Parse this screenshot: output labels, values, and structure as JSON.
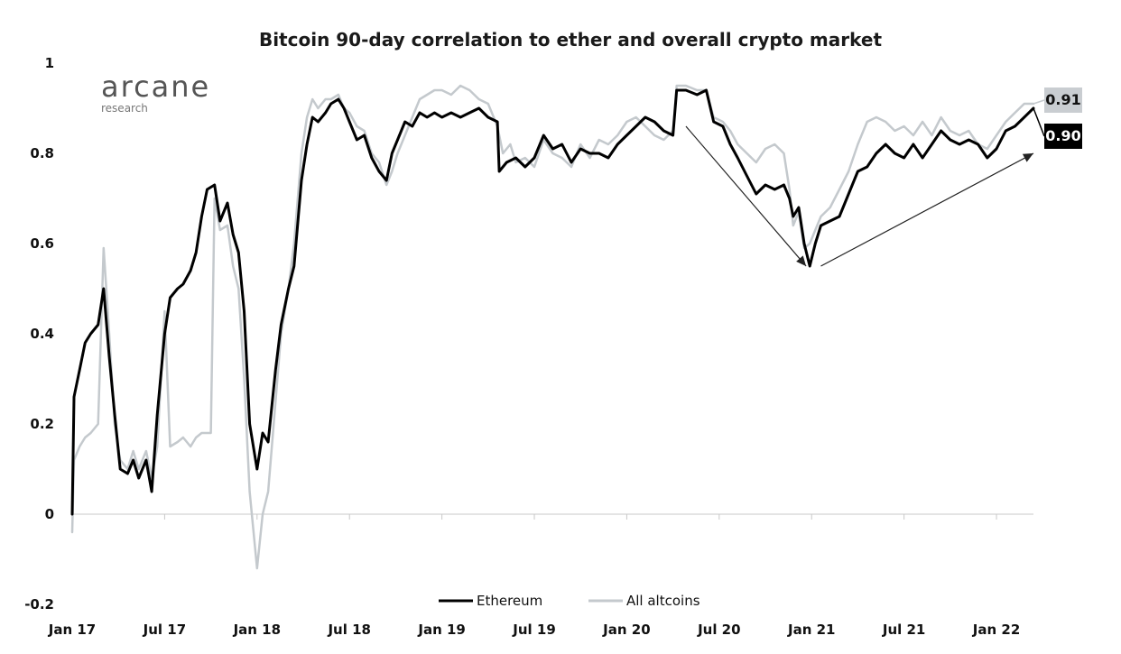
{
  "logo": {
    "name": "arcane",
    "sub": "research"
  },
  "chart_data": {
    "type": "line",
    "title": "Bitcoin 90-day correlation to ether and overall crypto market",
    "ylim": [
      -0.2,
      1
    ],
    "y_ticks": [
      "1",
      "0.8",
      "0.6",
      "0.4",
      "0.2",
      "0",
      "-0.2"
    ],
    "y_tick_values": [
      1,
      0.8,
      0.6,
      0.4,
      0.2,
      0,
      -0.2
    ],
    "x_ticks": [
      "Jan 17",
      "Jul 17",
      "Jan 18",
      "Jul 18",
      "Jan 19",
      "Jul 19",
      "Jan 20",
      "Jul 20",
      "Jan 21",
      "Jul 21",
      "Jan 22"
    ],
    "x_tick_values": [
      2017.0,
      2017.5,
      2018.0,
      2018.5,
      2019.0,
      2019.5,
      2020.0,
      2020.5,
      2021.0,
      2021.5,
      2022.0
    ],
    "xlim": [
      2017.0,
      2022.2
    ],
    "grid": false,
    "legend_position": "bottom-center",
    "series": [
      {
        "name": "Ethereum",
        "color": "#000000",
        "end_label": "0.90",
        "points": [
          [
            2017.0,
            0.0
          ],
          [
            2017.01,
            0.26
          ],
          [
            2017.04,
            0.32
          ],
          [
            2017.07,
            0.38
          ],
          [
            2017.1,
            0.4
          ],
          [
            2017.14,
            0.42
          ],
          [
            2017.17,
            0.5
          ],
          [
            2017.2,
            0.35
          ],
          [
            2017.23,
            0.22
          ],
          [
            2017.26,
            0.1
          ],
          [
            2017.3,
            0.09
          ],
          [
            2017.33,
            0.12
          ],
          [
            2017.36,
            0.08
          ],
          [
            2017.4,
            0.12
          ],
          [
            2017.43,
            0.05
          ],
          [
            2017.46,
            0.22
          ],
          [
            2017.5,
            0.4
          ],
          [
            2017.53,
            0.48
          ],
          [
            2017.57,
            0.5
          ],
          [
            2017.6,
            0.51
          ],
          [
            2017.64,
            0.54
          ],
          [
            2017.67,
            0.58
          ],
          [
            2017.7,
            0.66
          ],
          [
            2017.73,
            0.72
          ],
          [
            2017.77,
            0.73
          ],
          [
            2017.8,
            0.65
          ],
          [
            2017.84,
            0.69
          ],
          [
            2017.87,
            0.62
          ],
          [
            2017.9,
            0.58
          ],
          [
            2017.93,
            0.45
          ],
          [
            2017.96,
            0.2
          ],
          [
            2018.0,
            0.1
          ],
          [
            2018.03,
            0.18
          ],
          [
            2018.06,
            0.16
          ],
          [
            2018.1,
            0.32
          ],
          [
            2018.13,
            0.42
          ],
          [
            2018.17,
            0.5
          ],
          [
            2018.2,
            0.55
          ],
          [
            2018.24,
            0.74
          ],
          [
            2018.27,
            0.82
          ],
          [
            2018.3,
            0.88
          ],
          [
            2018.33,
            0.87
          ],
          [
            2018.37,
            0.89
          ],
          [
            2018.4,
            0.91
          ],
          [
            2018.44,
            0.92
          ],
          [
            2018.47,
            0.9
          ],
          [
            2018.5,
            0.87
          ],
          [
            2018.54,
            0.83
          ],
          [
            2018.58,
            0.84
          ],
          [
            2018.62,
            0.79
          ],
          [
            2018.66,
            0.76
          ],
          [
            2018.7,
            0.74
          ],
          [
            2018.73,
            0.8
          ],
          [
            2018.76,
            0.83
          ],
          [
            2018.8,
            0.87
          ],
          [
            2018.84,
            0.86
          ],
          [
            2018.88,
            0.89
          ],
          [
            2018.92,
            0.88
          ],
          [
            2018.96,
            0.89
          ],
          [
            2019.0,
            0.88
          ],
          [
            2019.05,
            0.89
          ],
          [
            2019.1,
            0.88
          ],
          [
            2019.15,
            0.89
          ],
          [
            2019.2,
            0.9
          ],
          [
            2019.25,
            0.88
          ],
          [
            2019.3,
            0.87
          ],
          [
            2019.31,
            0.76
          ],
          [
            2019.35,
            0.78
          ],
          [
            2019.4,
            0.79
          ],
          [
            2019.45,
            0.77
          ],
          [
            2019.5,
            0.79
          ],
          [
            2019.55,
            0.84
          ],
          [
            2019.6,
            0.81
          ],
          [
            2019.65,
            0.82
          ],
          [
            2019.7,
            0.78
          ],
          [
            2019.75,
            0.81
          ],
          [
            2019.8,
            0.8
          ],
          [
            2019.85,
            0.8
          ],
          [
            2019.9,
            0.79
          ],
          [
            2019.95,
            0.82
          ],
          [
            2020.0,
            0.84
          ],
          [
            2020.05,
            0.86
          ],
          [
            2020.1,
            0.88
          ],
          [
            2020.15,
            0.87
          ],
          [
            2020.2,
            0.85
          ],
          [
            2020.25,
            0.84
          ],
          [
            2020.27,
            0.94
          ],
          [
            2020.32,
            0.94
          ],
          [
            2020.38,
            0.93
          ],
          [
            2020.43,
            0.94
          ],
          [
            2020.47,
            0.87
          ],
          [
            2020.52,
            0.86
          ],
          [
            2020.56,
            0.82
          ],
          [
            2020.6,
            0.79
          ],
          [
            2020.65,
            0.75
          ],
          [
            2020.7,
            0.71
          ],
          [
            2020.75,
            0.73
          ],
          [
            2020.8,
            0.72
          ],
          [
            2020.85,
            0.73
          ],
          [
            2020.88,
            0.7
          ],
          [
            2020.9,
            0.66
          ],
          [
            2020.93,
            0.68
          ],
          [
            2020.96,
            0.6
          ],
          [
            2020.99,
            0.55
          ],
          [
            2021.02,
            0.6
          ],
          [
            2021.05,
            0.64
          ],
          [
            2021.1,
            0.65
          ],
          [
            2021.15,
            0.66
          ],
          [
            2021.2,
            0.71
          ],
          [
            2021.25,
            0.76
          ],
          [
            2021.3,
            0.77
          ],
          [
            2021.35,
            0.8
          ],
          [
            2021.4,
            0.82
          ],
          [
            2021.45,
            0.8
          ],
          [
            2021.5,
            0.79
          ],
          [
            2021.55,
            0.82
          ],
          [
            2021.6,
            0.79
          ],
          [
            2021.65,
            0.82
          ],
          [
            2021.7,
            0.85
          ],
          [
            2021.75,
            0.83
          ],
          [
            2021.8,
            0.82
          ],
          [
            2021.85,
            0.83
          ],
          [
            2021.9,
            0.82
          ],
          [
            2021.95,
            0.79
          ],
          [
            2022.0,
            0.81
          ],
          [
            2022.05,
            0.85
          ],
          [
            2022.1,
            0.86
          ],
          [
            2022.15,
            0.88
          ],
          [
            2022.2,
            0.9
          ]
        ]
      },
      {
        "name": "All altcoins",
        "color": "#c4c9cd",
        "end_label": "0.91",
        "points": [
          [
            2017.0,
            -0.04
          ],
          [
            2017.01,
            0.12
          ],
          [
            2017.04,
            0.15
          ],
          [
            2017.07,
            0.17
          ],
          [
            2017.1,
            0.18
          ],
          [
            2017.14,
            0.2
          ],
          [
            2017.17,
            0.59
          ],
          [
            2017.2,
            0.4
          ],
          [
            2017.23,
            0.2
          ],
          [
            2017.26,
            0.12
          ],
          [
            2017.3,
            0.1
          ],
          [
            2017.33,
            0.14
          ],
          [
            2017.36,
            0.1
          ],
          [
            2017.4,
            0.14
          ],
          [
            2017.43,
            0.08
          ],
          [
            2017.46,
            0.15
          ],
          [
            2017.5,
            0.45
          ],
          [
            2017.53,
            0.15
          ],
          [
            2017.57,
            0.16
          ],
          [
            2017.6,
            0.17
          ],
          [
            2017.64,
            0.15
          ],
          [
            2017.67,
            0.17
          ],
          [
            2017.7,
            0.18
          ],
          [
            2017.73,
            0.18
          ],
          [
            2017.75,
            0.18
          ],
          [
            2017.77,
            0.7
          ],
          [
            2017.8,
            0.63
          ],
          [
            2017.84,
            0.64
          ],
          [
            2017.87,
            0.55
          ],
          [
            2017.9,
            0.5
          ],
          [
            2017.93,
            0.3
          ],
          [
            2017.96,
            0.05
          ],
          [
            2018.0,
            -0.12
          ],
          [
            2018.03,
            0.0
          ],
          [
            2018.06,
            0.05
          ],
          [
            2018.1,
            0.25
          ],
          [
            2018.13,
            0.4
          ],
          [
            2018.17,
            0.5
          ],
          [
            2018.2,
            0.6
          ],
          [
            2018.24,
            0.8
          ],
          [
            2018.27,
            0.88
          ],
          [
            2018.3,
            0.92
          ],
          [
            2018.33,
            0.9
          ],
          [
            2018.37,
            0.92
          ],
          [
            2018.4,
            0.92
          ],
          [
            2018.44,
            0.93
          ],
          [
            2018.47,
            0.9
          ],
          [
            2018.5,
            0.89
          ],
          [
            2018.54,
            0.86
          ],
          [
            2018.58,
            0.85
          ],
          [
            2018.62,
            0.8
          ],
          [
            2018.66,
            0.78
          ],
          [
            2018.7,
            0.73
          ],
          [
            2018.73,
            0.76
          ],
          [
            2018.76,
            0.8
          ],
          [
            2018.8,
            0.84
          ],
          [
            2018.84,
            0.88
          ],
          [
            2018.88,
            0.92
          ],
          [
            2018.92,
            0.93
          ],
          [
            2018.96,
            0.94
          ],
          [
            2019.0,
            0.94
          ],
          [
            2019.05,
            0.93
          ],
          [
            2019.1,
            0.95
          ],
          [
            2019.15,
            0.94
          ],
          [
            2019.2,
            0.92
          ],
          [
            2019.25,
            0.91
          ],
          [
            2019.3,
            0.86
          ],
          [
            2019.33,
            0.8
          ],
          [
            2019.37,
            0.82
          ],
          [
            2019.4,
            0.78
          ],
          [
            2019.45,
            0.79
          ],
          [
            2019.5,
            0.77
          ],
          [
            2019.55,
            0.83
          ],
          [
            2019.6,
            0.8
          ],
          [
            2019.65,
            0.79
          ],
          [
            2019.7,
            0.77
          ],
          [
            2019.75,
            0.82
          ],
          [
            2019.8,
            0.79
          ],
          [
            2019.85,
            0.83
          ],
          [
            2019.9,
            0.82
          ],
          [
            2019.95,
            0.84
          ],
          [
            2020.0,
            0.87
          ],
          [
            2020.05,
            0.88
          ],
          [
            2020.1,
            0.86
          ],
          [
            2020.15,
            0.84
          ],
          [
            2020.2,
            0.83
          ],
          [
            2020.25,
            0.85
          ],
          [
            2020.27,
            0.95
          ],
          [
            2020.32,
            0.95
          ],
          [
            2020.38,
            0.94
          ],
          [
            2020.43,
            0.94
          ],
          [
            2020.47,
            0.88
          ],
          [
            2020.52,
            0.87
          ],
          [
            2020.56,
            0.85
          ],
          [
            2020.6,
            0.82
          ],
          [
            2020.65,
            0.8
          ],
          [
            2020.7,
            0.78
          ],
          [
            2020.75,
            0.81
          ],
          [
            2020.8,
            0.82
          ],
          [
            2020.85,
            0.8
          ],
          [
            2020.88,
            0.72
          ],
          [
            2020.9,
            0.64
          ],
          [
            2020.93,
            0.67
          ],
          [
            2020.96,
            0.59
          ],
          [
            2020.99,
            0.6
          ],
          [
            2021.02,
            0.63
          ],
          [
            2021.05,
            0.66
          ],
          [
            2021.1,
            0.68
          ],
          [
            2021.15,
            0.72
          ],
          [
            2021.2,
            0.76
          ],
          [
            2021.25,
            0.82
          ],
          [
            2021.3,
            0.87
          ],
          [
            2021.35,
            0.88
          ],
          [
            2021.4,
            0.87
          ],
          [
            2021.45,
            0.85
          ],
          [
            2021.5,
            0.86
          ],
          [
            2021.55,
            0.84
          ],
          [
            2021.6,
            0.87
          ],
          [
            2021.65,
            0.84
          ],
          [
            2021.7,
            0.88
          ],
          [
            2021.75,
            0.85
          ],
          [
            2021.8,
            0.84
          ],
          [
            2021.85,
            0.85
          ],
          [
            2021.9,
            0.82
          ],
          [
            2021.95,
            0.81
          ],
          [
            2022.0,
            0.84
          ],
          [
            2022.05,
            0.87
          ],
          [
            2022.1,
            0.89
          ],
          [
            2022.15,
            0.91
          ],
          [
            2022.2,
            0.91
          ]
        ]
      }
    ],
    "annotations": [
      {
        "type": "arrow",
        "from": [
          2020.32,
          0.86
        ],
        "to": [
          2020.97,
          0.55
        ]
      },
      {
        "type": "arrow",
        "from": [
          2021.05,
          0.55
        ],
        "to": [
          2022.2,
          0.8
        ]
      }
    ]
  }
}
